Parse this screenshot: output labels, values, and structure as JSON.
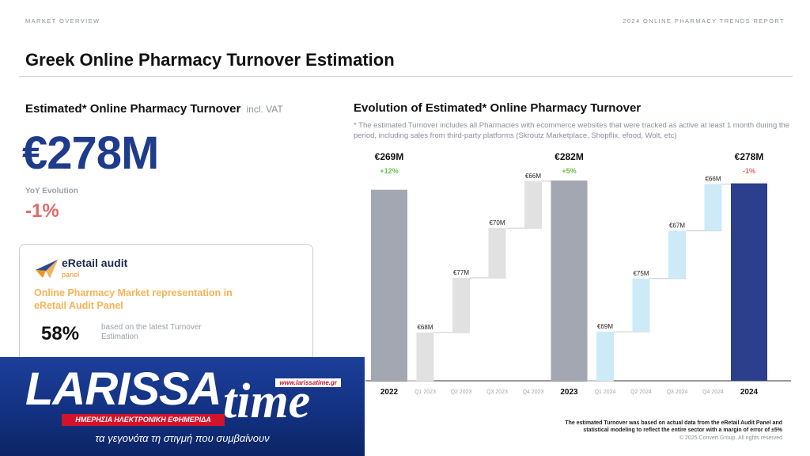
{
  "header": {
    "left_label": "MARKET OVERVIEW",
    "right_label": "2024 ONLINE PHARMACY TRENDS REPORT",
    "title": "Greek Online Pharmacy Turnover Estimation"
  },
  "kpi": {
    "title": "Estimated* Online Pharmacy Turnover",
    "vat_note": "incl. VAT",
    "value": "€278M",
    "yoy_label": "YoY Evolution",
    "yoy_value": "-1%"
  },
  "panel": {
    "logo_name": "eRetail audit",
    "logo_sub": "panel",
    "heading": "Online Pharmacy Market representation in eRetail Audit Panel",
    "percentage": "58%",
    "note": "based on the latest Turnover Estimation"
  },
  "chart_section": {
    "title": "Evolution of Estimated* Online Pharmacy Turnover",
    "note": "* The estimated Turnover includes all Pharmacies with ecommerce websites that were tracked as active at least 1 month during the period, including sales from third-party platforms (Skroutz Marketplace, Shopflix, efood, Wolt, etc)"
  },
  "chart_data": {
    "type": "bar",
    "subtype": "waterfall",
    "categories": [
      "2022",
      "Q1 2023",
      "Q2 2023",
      "Q3 2023",
      "Q4 2023",
      "2023",
      "Q1 2024",
      "Q2 2024",
      "Q3 2024",
      "Q4 2024",
      "2024"
    ],
    "bars": [
      {
        "category": "2022",
        "kind": "total",
        "value": 269,
        "label": "€269M",
        "change": "+12%",
        "change_color": "#6cbf4a",
        "color": "#a3a7b2"
      },
      {
        "category": "Q1 2023",
        "kind": "quarter",
        "value": 68,
        "label": "€68M",
        "color": "#e1e1e1"
      },
      {
        "category": "Q2 2023",
        "kind": "quarter",
        "value": 77,
        "label": "€77M",
        "color": "#e1e1e1"
      },
      {
        "category": "Q3 2023",
        "kind": "quarter",
        "value": 70,
        "label": "€70M",
        "color": "#e1e1e1"
      },
      {
        "category": "Q4 2023",
        "kind": "quarter",
        "value": 66,
        "label": "€66M",
        "color": "#e1e1e1"
      },
      {
        "category": "2023",
        "kind": "total",
        "value": 282,
        "label": "€282M",
        "change": "+5%",
        "change_color": "#6cbf4a",
        "color": "#a3a7b2"
      },
      {
        "category": "Q1 2024",
        "kind": "quarter",
        "value": 69,
        "label": "€69M",
        "color": "#cdeaf7"
      },
      {
        "category": "Q2 2024",
        "kind": "quarter",
        "value": 75,
        "label": "€75M",
        "color": "#cdeaf7"
      },
      {
        "category": "Q3 2024",
        "kind": "quarter",
        "value": 67,
        "label": "€67M",
        "color": "#cdeaf7"
      },
      {
        "category": "Q4 2024",
        "kind": "quarter",
        "value": 66,
        "label": "€66M",
        "color": "#cdeaf7"
      },
      {
        "category": "2024",
        "kind": "total",
        "value": 278,
        "label": "€278M",
        "change": "-1%",
        "change_color": "#e06b6b",
        "color": "#2b3f8c"
      }
    ],
    "xlabel": "",
    "ylabel": "",
    "grid": false
  },
  "footer": {
    "note": "The estimated Turnover was based on actual data from the eRetail Audit Panel and statistical modeling to reflect the entire sector with a margin of error of ±5%",
    "copyright": "© 2025 Convert Group. All rights reserved"
  },
  "banner": {
    "brand_first": "LARISSA",
    "brand_second": "time",
    "url": "www.larissatime.gr",
    "subtitle": "ΗΜΕΡΗΣΙΑ ΗΛΕΚΤΡΟΝΙΚΗ ΕΦΗΜΕΡΙΔΑ",
    "tagline": "τα γεγονότα τη στιγμή που συμβαίνουν"
  },
  "colors": {
    "accent_blue": "#1f3c8b",
    "negative_red": "#e06b6b",
    "positive_green": "#6cbf4a",
    "panel_orange": "#f5b356"
  }
}
